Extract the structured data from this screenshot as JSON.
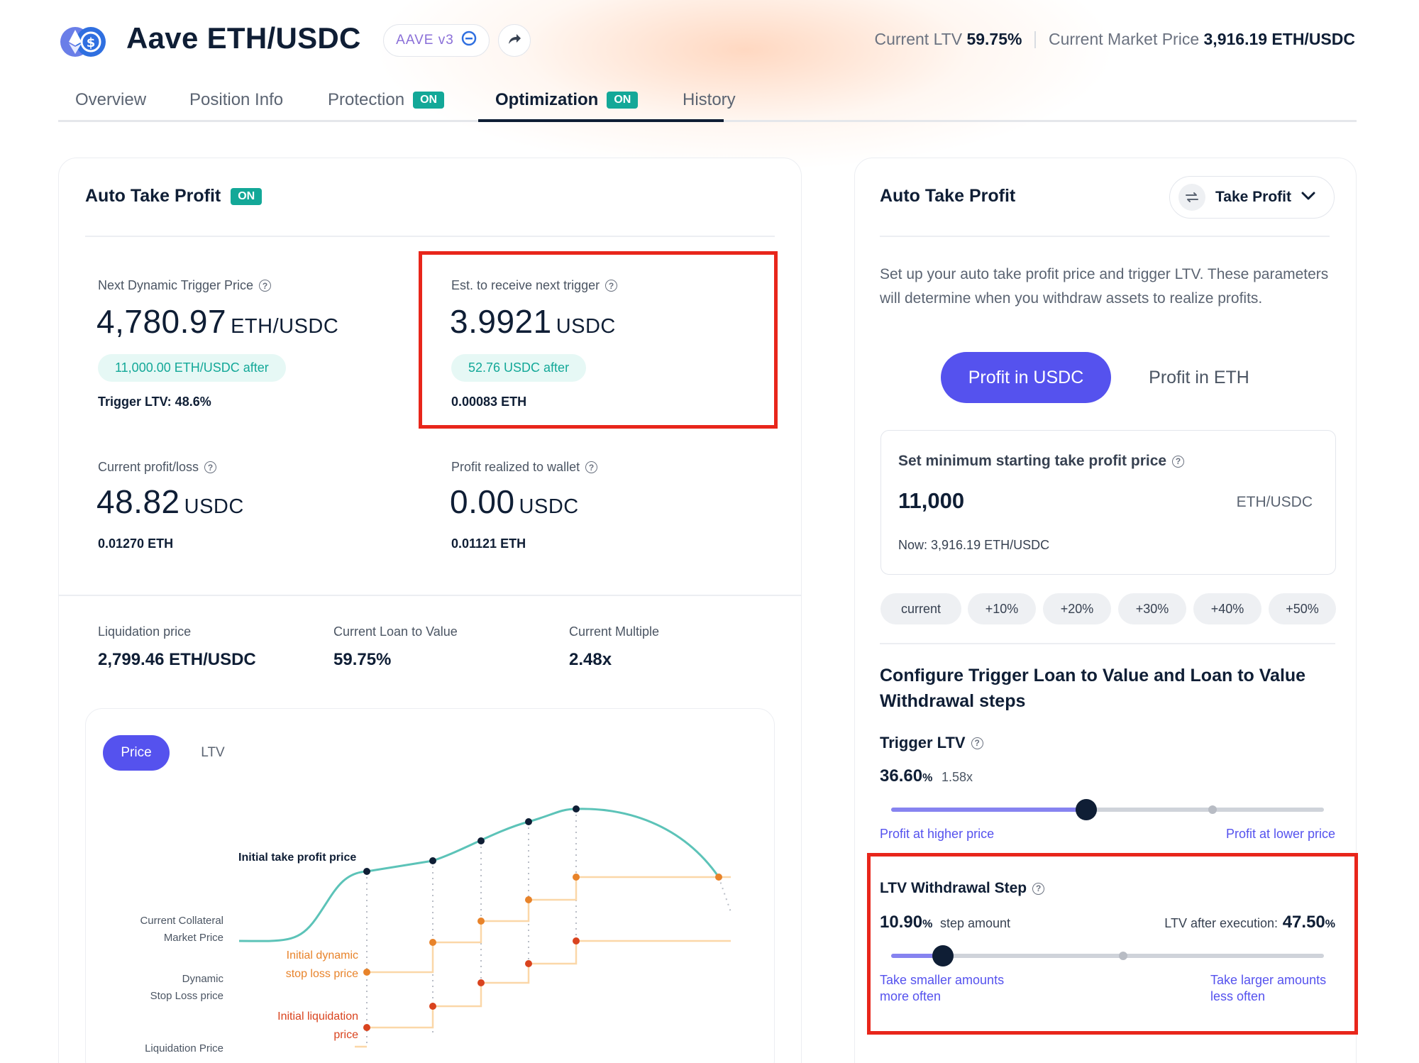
{
  "header": {
    "title": "Aave ETH/USDC",
    "protocol_badge": "AAVE v3",
    "current_ltv_label": "Current LTV",
    "current_ltv_value": "59.75%",
    "market_price_label": "Current Market Price",
    "market_price_value": "3,916.19 ETH/USDC"
  },
  "tabs": [
    {
      "label": "Overview"
    },
    {
      "label": "Position Info"
    },
    {
      "label": "Protection",
      "badge": "ON"
    },
    {
      "label": "Optimization",
      "badge": "ON"
    },
    {
      "label": "History"
    }
  ],
  "left_card": {
    "title": "Auto Take Profit",
    "badge": "ON",
    "next_trigger": {
      "label": "Next Dynamic Trigger Price",
      "value": "4,780.97",
      "unit": "ETH/USDC",
      "after": "11,000.00 ETH/USDC after",
      "trigger_ltv": "Trigger LTV: 48.6%"
    },
    "est_receive": {
      "label": "Est. to receive next trigger",
      "value": "3.9921",
      "unit": "USDC",
      "after": "52.76 USDC after",
      "eth": "0.00083 ETH"
    },
    "profit_loss": {
      "label": "Current profit/loss",
      "value": "48.82",
      "unit": "USDC",
      "eth": "0.01270 ETH"
    },
    "profit_realized": {
      "label": "Profit realized to wallet",
      "value": "0.00",
      "unit": "USDC",
      "eth": "0.01121 ETH"
    },
    "stats": [
      {
        "label": "Liquidation price",
        "value": "2,799.46 ETH/USDC"
      },
      {
        "label": "Current Loan to Value",
        "value": "59.75%"
      },
      {
        "label": "Current Multiple",
        "value": "2.48x"
      }
    ],
    "chart": {
      "tab_price": "Price",
      "tab_ltv": "LTV",
      "label_take_profit": "Initial take profit price",
      "label_collateral_1": "Current Collateral",
      "label_collateral_2": "Market Price",
      "label_dyn_stop_1": "Initial dynamic",
      "label_dyn_stop_2": "stop loss price",
      "label_stop_1": "Dynamic",
      "label_stop_2": "Stop Loss price",
      "label_init_liq_1": "Initial liquidation",
      "label_init_liq_2": "price",
      "label_liq": "Liquidation Price",
      "colors": {
        "curve": "#5cc3b8",
        "stop": "#e8832a",
        "liq": "#d9431e",
        "grid": "#fbd7a8"
      }
    }
  },
  "right_card": {
    "title": "Auto Take Profit",
    "dropdown": "Take Profit",
    "description": "Set up your auto take profit price and trigger LTV. These parameters will determine when you withdraw assets to realize profits.",
    "toggle_usdc": "Profit in USDC",
    "toggle_eth": "Profit in ETH",
    "min_price": {
      "label": "Set minimum starting take profit price",
      "value": "11,000",
      "unit": "ETH/USDC",
      "now": "Now: 3,916.19 ETH/USDC"
    },
    "chips": [
      "current",
      "+10%",
      "+20%",
      "+30%",
      "+40%",
      "+50%"
    ],
    "configure_title": "Configure Trigger Loan to Value and Loan to Value Withdrawal steps",
    "trigger_ltv": {
      "label": "Trigger LTV",
      "value": "36.60",
      "pct": "%",
      "multiple": "1.58x",
      "left_hint": "Profit at higher price",
      "right_hint": "Profit at lower price",
      "position": 0.45
    },
    "withdrawal_step": {
      "label": "LTV Withdrawal Step",
      "value": "10.90",
      "pct": "%",
      "suffix": "step amount",
      "after_label": "LTV after execution:",
      "after_value": "47.50",
      "after_pct": "%",
      "left_hint_1": "Take smaller amounts",
      "left_hint_2": "more often",
      "right_hint_1": "Take larger amounts",
      "right_hint_2": "less often",
      "position": 0.12
    }
  }
}
